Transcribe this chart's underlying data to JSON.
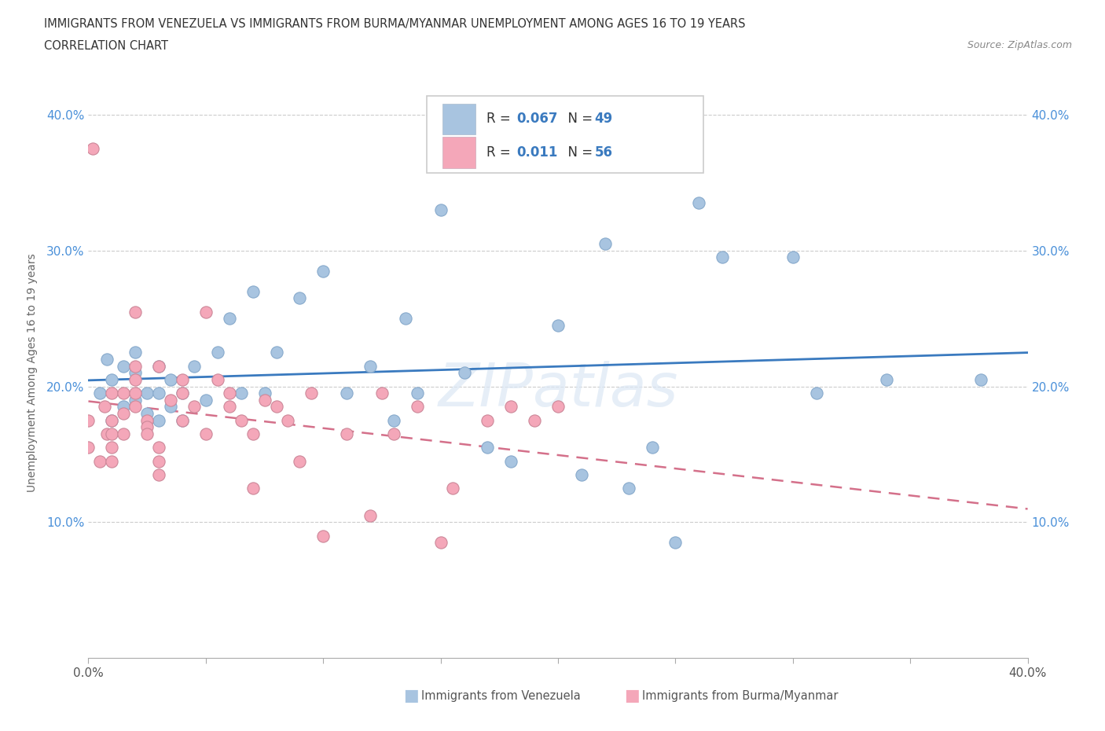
{
  "title_line1": "IMMIGRANTS FROM VENEZUELA VS IMMIGRANTS FROM BURMA/MYANMAR UNEMPLOYMENT AMONG AGES 16 TO 19 YEARS",
  "title_line2": "CORRELATION CHART",
  "source": "Source: ZipAtlas.com",
  "ylabel": "Unemployment Among Ages 16 to 19 years",
  "xlim": [
    0.0,
    0.4
  ],
  "ylim": [
    0.0,
    0.42
  ],
  "color_venezuela": "#a8c4e0",
  "color_burma": "#f4a7b9",
  "line_color_blue": "#3a7abf",
  "line_color_pink": "#d4708a",
  "R_venezuela": 0.067,
  "N_venezuela": 49,
  "R_burma": 0.011,
  "N_burma": 56,
  "legend_label_venezuela": "Immigrants from Venezuela",
  "legend_label_burma": "Immigrants from Burma/Myanmar",
  "watermark": "ZIPatlas",
  "tick_color": "#4a90d9",
  "venezuela_x": [
    0.005,
    0.008,
    0.01,
    0.01,
    0.015,
    0.015,
    0.02,
    0.02,
    0.02,
    0.025,
    0.025,
    0.03,
    0.03,
    0.03,
    0.035,
    0.035,
    0.04,
    0.04,
    0.045,
    0.05,
    0.055,
    0.06,
    0.065,
    0.07,
    0.075,
    0.08,
    0.09,
    0.1,
    0.11,
    0.12,
    0.13,
    0.135,
    0.14,
    0.15,
    0.16,
    0.17,
    0.18,
    0.2,
    0.21,
    0.22,
    0.23,
    0.24,
    0.25,
    0.26,
    0.27,
    0.3,
    0.31,
    0.34,
    0.38
  ],
  "venezuela_y": [
    0.195,
    0.22,
    0.175,
    0.205,
    0.185,
    0.215,
    0.19,
    0.21,
    0.225,
    0.18,
    0.195,
    0.175,
    0.195,
    0.215,
    0.185,
    0.205,
    0.175,
    0.195,
    0.215,
    0.19,
    0.225,
    0.25,
    0.195,
    0.27,
    0.195,
    0.225,
    0.265,
    0.285,
    0.195,
    0.215,
    0.175,
    0.25,
    0.195,
    0.33,
    0.21,
    0.155,
    0.145,
    0.245,
    0.135,
    0.305,
    0.125,
    0.155,
    0.085,
    0.335,
    0.295,
    0.295,
    0.195,
    0.205,
    0.205
  ],
  "burma_x": [
    0.0,
    0.0,
    0.002,
    0.005,
    0.007,
    0.008,
    0.01,
    0.01,
    0.01,
    0.01,
    0.01,
    0.015,
    0.015,
    0.015,
    0.02,
    0.02,
    0.02,
    0.02,
    0.02,
    0.025,
    0.025,
    0.025,
    0.03,
    0.03,
    0.03,
    0.03,
    0.035,
    0.04,
    0.04,
    0.04,
    0.045,
    0.05,
    0.05,
    0.055,
    0.06,
    0.06,
    0.065,
    0.07,
    0.07,
    0.075,
    0.08,
    0.085,
    0.09,
    0.095,
    0.1,
    0.11,
    0.12,
    0.125,
    0.13,
    0.14,
    0.15,
    0.155,
    0.17,
    0.18,
    0.19,
    0.2
  ],
  "burma_y": [
    0.175,
    0.155,
    0.375,
    0.145,
    0.185,
    0.165,
    0.195,
    0.175,
    0.165,
    0.155,
    0.145,
    0.195,
    0.18,
    0.165,
    0.255,
    0.215,
    0.205,
    0.195,
    0.185,
    0.175,
    0.17,
    0.165,
    0.155,
    0.145,
    0.135,
    0.215,
    0.19,
    0.175,
    0.205,
    0.195,
    0.185,
    0.165,
    0.255,
    0.205,
    0.195,
    0.185,
    0.175,
    0.165,
    0.125,
    0.19,
    0.185,
    0.175,
    0.145,
    0.195,
    0.09,
    0.165,
    0.105,
    0.195,
    0.165,
    0.185,
    0.085,
    0.125,
    0.175,
    0.185,
    0.175,
    0.185
  ]
}
